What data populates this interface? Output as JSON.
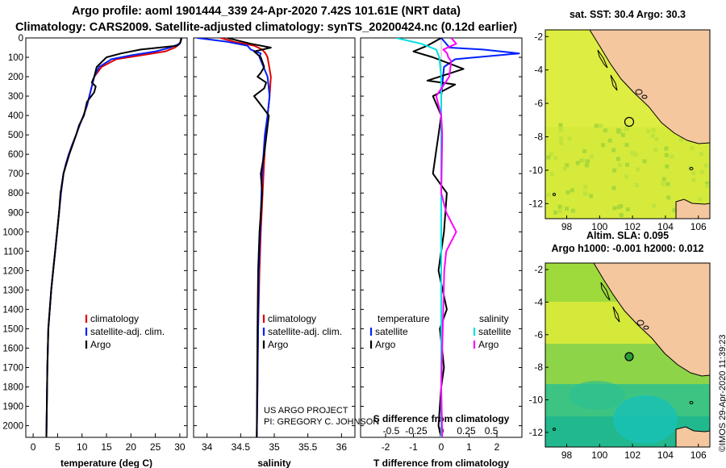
{
  "header": {
    "title_line1": "Argo profile: aoml 1901444_339 24-Apr-2020 7.42S 101.61E (NRT data)",
    "title_line2": "Climatology: CARS2009. Satellite-adjusted climatology: synTS_20200424.nc (0.12d earlier)"
  },
  "credit": "©IMOS 29-Apr-2020 11:39:23",
  "project": {
    "line1": "US ARGO PROJECT",
    "line2": "PI: GREGORY C. JOHNSON"
  },
  "colors": {
    "climatology": "#e00000",
    "satellite": "#0020ff",
    "argo": "#000000",
    "sat_salinity": "#00e0e0",
    "argo_salinity": "#ff00ff",
    "land": "#f4c79e",
    "sea": "#d6ea3c"
  },
  "chart_data": [
    {
      "type": "line",
      "title": "",
      "xlabel": "temperature (deg C)",
      "ylabel": "",
      "xlim": [
        -1.5,
        31.5
      ],
      "ylim": [
        2060,
        0
      ],
      "xticks": [
        "0",
        "5",
        "10",
        "15",
        "20",
        "25",
        "30"
      ],
      "xtick_values": [
        0,
        5,
        10,
        15,
        20,
        25,
        30
      ],
      "yticks": [
        "0",
        "100",
        "200",
        "300",
        "400",
        "500",
        "600",
        "700",
        "800",
        "900",
        "1000",
        "1100",
        "1200",
        "1300",
        "1400",
        "1500",
        "1600",
        "1700",
        "1800",
        "1900",
        "2000"
      ],
      "ytick_values": [
        0,
        100,
        200,
        300,
        400,
        500,
        600,
        700,
        800,
        900,
        1000,
        1100,
        1200,
        1300,
        1400,
        1500,
        1600,
        1700,
        1800,
        1900,
        2000
      ],
      "legend": [
        "climatology",
        "satellite-adj. clim.",
        "Argo"
      ],
      "series": [
        {
          "name": "climatology",
          "color": "#e00000",
          "x": [
            30.3,
            30.0,
            29.0,
            27.0,
            22.0,
            17.0,
            14.0,
            12.5,
            12.0,
            11.5,
            11.0,
            10.3,
            9.5,
            8.8,
            8.0,
            7.3,
            6.7,
            6.2,
            5.7,
            5.3,
            4.9,
            4.5,
            4.1,
            3.7,
            3.4,
            3.1,
            2.9,
            2.7
          ],
          "depth": [
            0,
            30,
            50,
            70,
            90,
            110,
            150,
            200,
            250,
            300,
            350,
            400,
            450,
            500,
            550,
            600,
            650,
            700,
            800,
            900,
            1000,
            1100,
            1200,
            1300,
            1400,
            1500,
            1700,
            2060
          ]
        },
        {
          "name": "satellite-adj. clim.",
          "color": "#0020ff",
          "x": [
            30.4,
            30.0,
            28.0,
            25.0,
            20.0,
            16.0,
            13.5,
            12.5,
            12.0,
            11.5,
            11.0,
            10.3,
            9.5,
            8.8,
            8.0,
            7.3,
            6.7,
            6.2,
            5.7,
            5.3,
            4.9,
            4.5,
            4.1,
            3.7,
            3.4,
            3.1,
            2.9,
            2.7
          ],
          "depth": [
            0,
            30,
            50,
            70,
            90,
            110,
            150,
            200,
            250,
            300,
            350,
            400,
            450,
            500,
            550,
            600,
            650,
            700,
            800,
            900,
            1000,
            1100,
            1200,
            1300,
            1400,
            1500,
            1700,
            2060
          ]
        },
        {
          "name": "Argo",
          "color": "#000000",
          "x": [
            30.3,
            30.2,
            29.5,
            22.0,
            18.0,
            15.0,
            13.0,
            12.5,
            12.0,
            12.8,
            12.5,
            11.0,
            10.4,
            9.4,
            8.8,
            8.1,
            7.4,
            6.8,
            6.2,
            5.6,
            5.3,
            4.9,
            4.5,
            4.1,
            3.7,
            3.4,
            3.1,
            2.9,
            2.7
          ],
          "depth": [
            0,
            20,
            40,
            60,
            80,
            100,
            150,
            200,
            230,
            250,
            280,
            330,
            400,
            450,
            500,
            550,
            600,
            650,
            700,
            800,
            900,
            1000,
            1100,
            1200,
            1300,
            1400,
            1500,
            1700,
            2060
          ]
        }
      ]
    },
    {
      "type": "line",
      "title": "",
      "xlabel": "salinity",
      "ylabel": "",
      "xlim": [
        33.8,
        36.2
      ],
      "ylim": [
        2060,
        0
      ],
      "xticks": [
        "34",
        "34.5",
        "35",
        "35.5",
        "36"
      ],
      "xtick_values": [
        34,
        34.5,
        35,
        35.5,
        36
      ],
      "legend": [
        "climatology",
        "satellite-adj. clim.",
        "Argo"
      ],
      "series": [
        {
          "name": "climatology",
          "color": "#e00000",
          "x": [
            34.2,
            34.4,
            34.7,
            34.82,
            34.87,
            34.9,
            34.95,
            34.93,
            34.9,
            34.87,
            34.84,
            34.8,
            34.78,
            34.76,
            34.75,
            34.74
          ],
          "depth": [
            0,
            20,
            40,
            60,
            80,
            100,
            200,
            300,
            400,
            500,
            700,
            1000,
            1200,
            1500,
            1800,
            2060
          ]
        },
        {
          "name": "satellite-adj. clim.",
          "color": "#0020ff",
          "x": [
            33.85,
            34.3,
            34.6,
            34.65,
            34.8,
            34.78,
            34.9,
            34.93,
            34.9,
            34.86,
            34.82,
            34.79,
            34.77,
            34.76,
            34.75,
            34.74
          ],
          "depth": [
            0,
            20,
            40,
            60,
            80,
            100,
            200,
            300,
            400,
            500,
            700,
            1000,
            1200,
            1500,
            1800,
            2060
          ]
        },
        {
          "name": "Argo",
          "color": "#000000",
          "x": [
            34.3,
            34.65,
            34.95,
            34.7,
            34.8,
            34.85,
            34.8,
            34.75,
            34.88,
            34.85,
            34.7,
            34.92,
            34.85,
            34.8,
            34.82,
            34.78,
            34.76,
            34.75,
            34.74
          ],
          "depth": [
            0,
            30,
            50,
            70,
            100,
            150,
            180,
            200,
            230,
            260,
            300,
            400,
            600,
            700,
            800,
            1000,
            1200,
            1500,
            2060
          ]
        }
      ]
    },
    {
      "type": "line",
      "title": "",
      "xlabel": "T difference from climatology",
      "ylabel": "",
      "xlim": [
        -2.9,
        2.9
      ],
      "ylim": [
        2060,
        0
      ],
      "xticks": [
        "-2",
        "-1",
        "0",
        "1",
        "2"
      ],
      "xtick_values": [
        -2,
        -1,
        0,
        1,
        2
      ],
      "top_xlabel": "S difference from climatology",
      "top_xticks": [
        "-0.5",
        "-0.25",
        "0",
        "0.25",
        "0.5"
      ],
      "top_xtick_values": [
        -0.5,
        -0.25,
        0,
        0.25,
        0.5
      ],
      "legend": [
        "temperature",
        "satellite",
        "Argo",
        "salinity",
        "satellite",
        "Argo"
      ],
      "series": [
        {
          "name": "temperature satellite",
          "color": "#0020ff",
          "axis": "T",
          "x": [
            0,
            0.3,
            1.5,
            2.8,
            0.5,
            0.1,
            0,
            0,
            0,
            0
          ],
          "depth": [
            0,
            50,
            60,
            80,
            110,
            150,
            300,
            800,
            1500,
            2060
          ]
        },
        {
          "name": "temperature Argo",
          "color": "#000000",
          "axis": "T",
          "x": [
            0,
            -0.5,
            -1.0,
            -0.3,
            0.8,
            -0.5,
            0.5,
            -0.3,
            0,
            -0.1,
            -0.2,
            -0.3,
            0.2,
            0.1,
            -0.1,
            0.2,
            -0.05,
            0.1,
            0,
            -0.1,
            0
          ],
          "depth": [
            0,
            40,
            70,
            100,
            160,
            220,
            240,
            300,
            400,
            500,
            600,
            700,
            800,
            1000,
            1200,
            1400,
            1500,
            1700,
            1800,
            2000,
            2060
          ]
        },
        {
          "name": "salinity satellite",
          "color": "#00e0e0",
          "axis": "S",
          "x": [
            -0.45,
            -0.2,
            -0.05,
            -0.02,
            0,
            0,
            0,
            0,
            0
          ],
          "depth": [
            0,
            30,
            60,
            100,
            200,
            500,
            1000,
            1500,
            2060
          ]
        },
        {
          "name": "salinity Argo",
          "color": "#ff00ff",
          "axis": "S",
          "x": [
            0.1,
            0.15,
            0.02,
            0.06,
            0.07,
            0.1,
            0.08,
            -0.05,
            0,
            0.01,
            0,
            0.05,
            0.15,
            0.05,
            0.03,
            0.02,
            0.01,
            0,
            0.01
          ],
          "depth": [
            0,
            30,
            60,
            80,
            100,
            120,
            200,
            300,
            400,
            500,
            800,
            900,
            1000,
            1100,
            1200,
            1400,
            1600,
            1800,
            2060
          ]
        }
      ]
    },
    {
      "type": "heatmap",
      "title": "sat. SST: 30.4 Argo: 30.3",
      "xlabel": "",
      "ylabel": "",
      "xlim": [
        96.7,
        106.7
      ],
      "ylim": [
        -12.9,
        -1.6
      ],
      "xticks": [
        "98",
        "100",
        "102",
        "104",
        "106"
      ],
      "xtick_values": [
        98,
        100,
        102,
        104,
        106
      ],
      "yticks": [
        "-2",
        "-4",
        "-6",
        "-8",
        "-10",
        "-12"
      ],
      "ytick_values": [
        -2,
        -4,
        -6,
        -8,
        -10,
        -12
      ],
      "argo_position": [
        101.61,
        -7.42
      ]
    },
    {
      "type": "heatmap",
      "title": "Altim. SLA: 0.095",
      "subtitle": "Argo h1000: -0.001 h2000: 0.012",
      "xlabel": "",
      "ylabel": "",
      "xlim": [
        96.7,
        106.7
      ],
      "ylim": [
        -12.9,
        -1.6
      ],
      "xticks": [
        "98",
        "100",
        "102",
        "104",
        "106"
      ],
      "xtick_values": [
        98,
        100,
        102,
        104,
        106
      ],
      "yticks": [
        "-2",
        "-4",
        "-6",
        "-8",
        "-10",
        "-12"
      ],
      "ytick_values": [
        -2,
        -4,
        -6,
        -8,
        -10,
        -12
      ],
      "argo_position": [
        101.61,
        -7.42
      ]
    }
  ]
}
